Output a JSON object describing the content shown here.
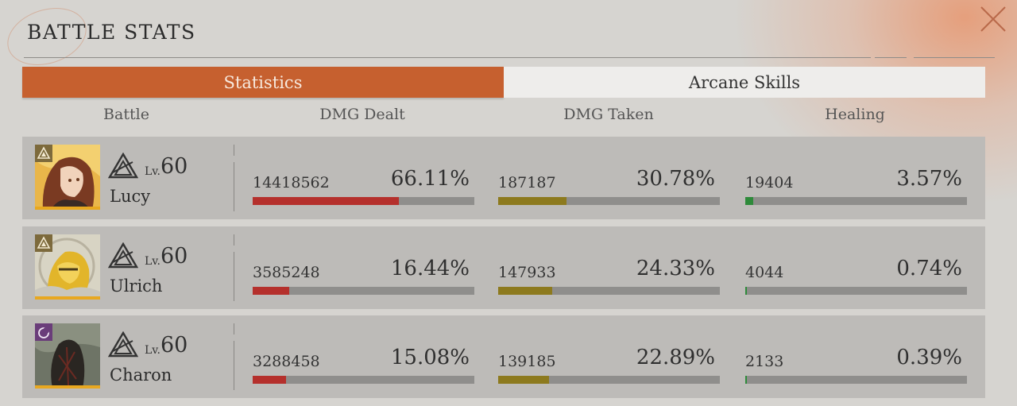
{
  "title": "BATTLE STATS",
  "tabs": [
    {
      "label": "Statistics",
      "active": true
    },
    {
      "label": "Arcane Skills",
      "active": false
    }
  ],
  "columns": [
    "Battle",
    "DMG Dealt",
    "DMG Taken",
    "Healing"
  ],
  "colors": {
    "accent": "#c6602f",
    "dmg_dealt_bar": "#b5302c",
    "dmg_taken_bar": "#8d7a1e",
    "healing_bar": "#2e8a3a"
  },
  "characters": [
    {
      "name": "Lucy",
      "lv_prefix": "Lv.",
      "level": "60",
      "portrait_icon": "lucy-portrait",
      "class_icon": "triangle-class-icon",
      "dmg_dealt": {
        "value": "14418562",
        "percent": "66.11%",
        "fraction": 0.6611
      },
      "dmg_taken": {
        "value": "187187",
        "percent": "30.78%",
        "fraction": 0.3078
      },
      "healing": {
        "value": "19404",
        "percent": "3.57%",
        "fraction": 0.0357
      }
    },
    {
      "name": "Ulrich",
      "lv_prefix": "Lv.",
      "level": "60",
      "portrait_icon": "ulrich-portrait",
      "class_icon": "triangle-class-icon",
      "dmg_dealt": {
        "value": "3585248",
        "percent": "16.44%",
        "fraction": 0.1644
      },
      "dmg_taken": {
        "value": "147933",
        "percent": "24.33%",
        "fraction": 0.2433
      },
      "healing": {
        "value": "4044",
        "percent": "0.74%",
        "fraction": 0.0074
      }
    },
    {
      "name": "Charon",
      "lv_prefix": "Lv.",
      "level": "60",
      "portrait_icon": "charon-portrait",
      "class_icon": "moon-class-icon",
      "dmg_dealt": {
        "value": "3288458",
        "percent": "15.08%",
        "fraction": 0.1508
      },
      "dmg_taken": {
        "value": "139185",
        "percent": "22.89%",
        "fraction": 0.2289
      },
      "healing": {
        "value": "2133",
        "percent": "0.39%",
        "fraction": 0.0039
      }
    }
  ]
}
